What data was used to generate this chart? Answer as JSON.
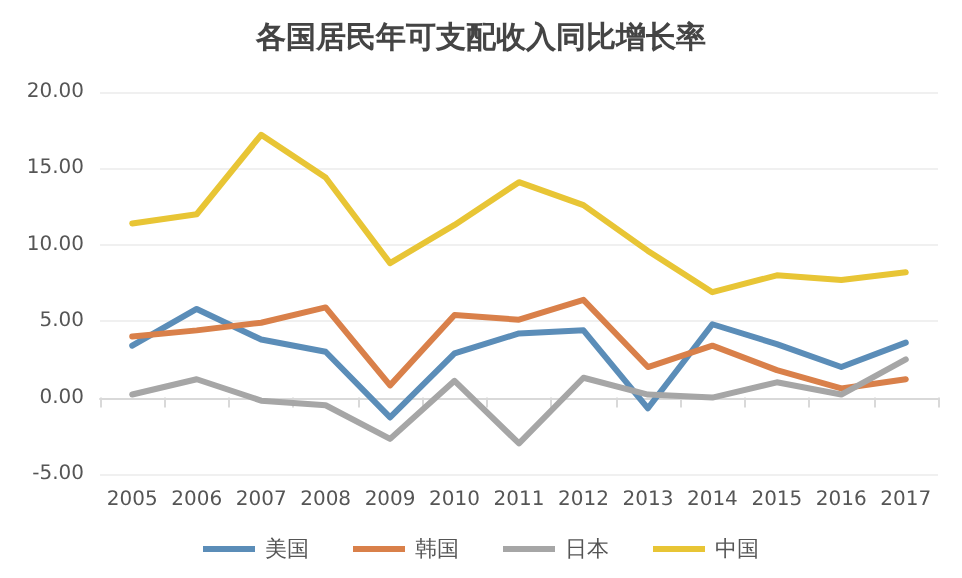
{
  "chart_data": {
    "type": "line",
    "title": "各国居民年可支配收入同比增长率",
    "categories": [
      "2005",
      "2006",
      "2007",
      "2008",
      "2009",
      "2010",
      "2011",
      "2012",
      "2013",
      "2014",
      "2015",
      "2016",
      "2017"
    ],
    "series": [
      {
        "name": "美国",
        "color": "#5b8db8",
        "values": [
          3.4,
          5.8,
          3.8,
          3.0,
          -1.3,
          2.9,
          4.2,
          4.4,
          -0.7,
          4.8,
          3.5,
          2.0,
          3.6
        ]
      },
      {
        "name": "韩国",
        "color": "#d9804a",
        "values": [
          4.0,
          4.4,
          4.9,
          5.9,
          0.8,
          5.4,
          5.1,
          6.4,
          2.0,
          3.4,
          1.8,
          0.6,
          1.2
        ]
      },
      {
        "name": "日本",
        "color": "#a6a6a6",
        "values": [
          0.2,
          1.2,
          -0.2,
          -0.5,
          -2.7,
          1.1,
          -3.0,
          1.3,
          0.2,
          0.0,
          1.0,
          0.2,
          2.5
        ]
      },
      {
        "name": "中国",
        "color": "#e8c535",
        "values": [
          11.4,
          12.0,
          17.2,
          14.4,
          8.8,
          11.3,
          14.1,
          12.6,
          9.6,
          6.9,
          8.0,
          7.7,
          8.2
        ]
      }
    ],
    "ylim": [
      -5,
      20
    ],
    "yticks": [
      {
        "value": -5,
        "label": "-5.00"
      },
      {
        "value": 0,
        "label": "0.00"
      },
      {
        "value": 5,
        "label": "5.00"
      },
      {
        "value": 10,
        "label": "10.00"
      },
      {
        "value": 15,
        "label": "15.00"
      },
      {
        "value": 20,
        "label": "20.00"
      }
    ],
    "grid": "y",
    "legend": "bottom",
    "marker": "none",
    "line_style": "solid"
  }
}
